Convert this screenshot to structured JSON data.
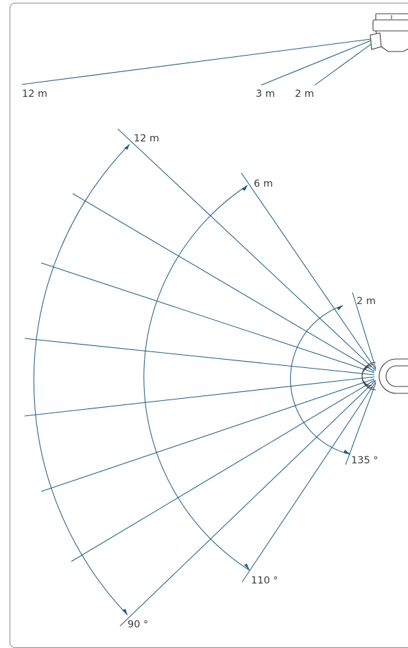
{
  "side_view": {
    "labels": [
      "12 m",
      "3 m",
      "2 m"
    ]
  },
  "top_view": {
    "range_labels": [
      "12 m",
      "6 m",
      "2 m"
    ],
    "angle_labels": [
      "90 °",
      "110 °",
      "135 °"
    ]
  },
  "colors": {
    "line": "#1d5d86",
    "text": "#3a3a3a",
    "frame": "#8a8a8a"
  }
}
